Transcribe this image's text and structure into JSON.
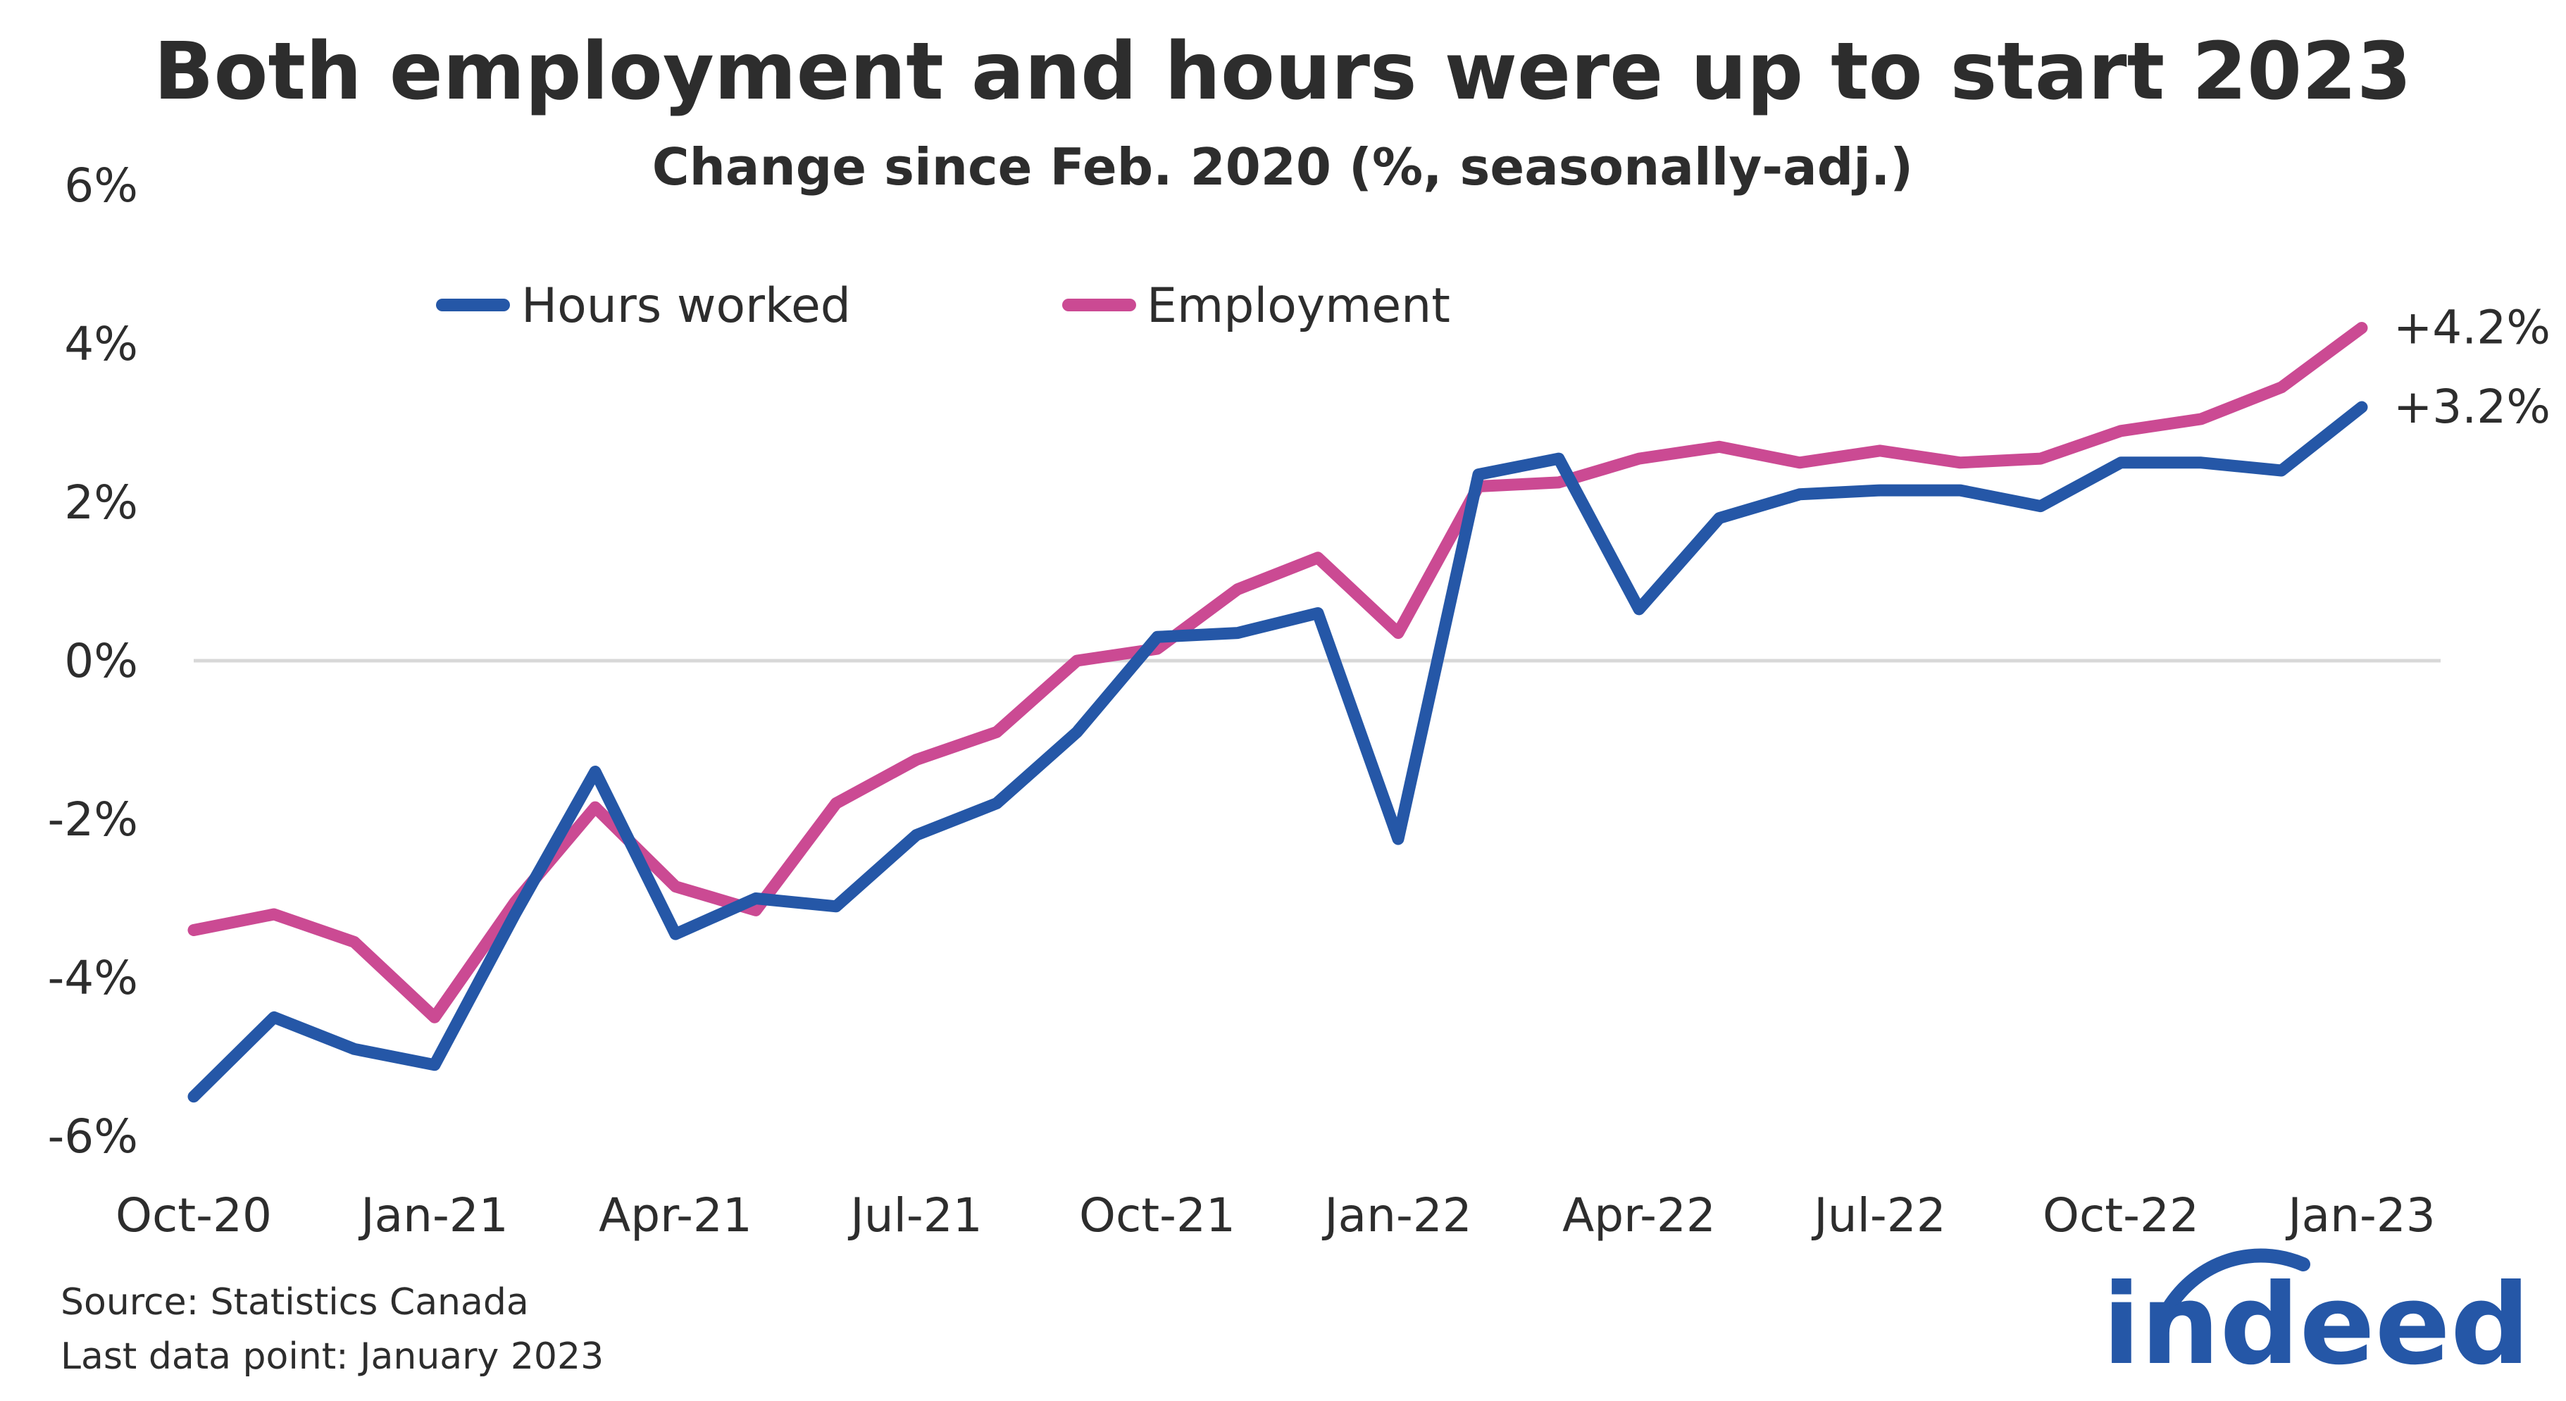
{
  "chart_data": {
    "type": "line",
    "title": "Both employment and hours were up to start 2023",
    "subtitle": "Change since Feb. 2020 (%, seasonally-adj.)",
    "xlabel": "",
    "ylabel": "",
    "ylim": [
      -6,
      6
    ],
    "y_ticks": [
      -6,
      -4,
      -2,
      0,
      2,
      4,
      6
    ],
    "y_tick_labels": [
      "-6%",
      "-4%",
      "-2%",
      "0%",
      "2%",
      "4%",
      "6%"
    ],
    "categories": [
      "Oct-20",
      "Nov-20",
      "Dec-20",
      "Jan-21",
      "Feb-21",
      "Mar-21",
      "Apr-21",
      "May-21",
      "Jun-21",
      "Jul-21",
      "Aug-21",
      "Sep-21",
      "Oct-21",
      "Nov-21",
      "Dec-21",
      "Jan-22",
      "Feb-22",
      "Mar-22",
      "Apr-22",
      "May-22",
      "Jun-22",
      "Jul-22",
      "Aug-22",
      "Sep-22",
      "Oct-22",
      "Nov-22",
      "Dec-22",
      "Jan-23"
    ],
    "x_ticks": [
      {
        "index": 0,
        "label": "Oct-20"
      },
      {
        "index": 3,
        "label": "Jan-21"
      },
      {
        "index": 6,
        "label": "Apr-21"
      },
      {
        "index": 9,
        "label": "Jul-21"
      },
      {
        "index": 12,
        "label": "Oct-21"
      },
      {
        "index": 15,
        "label": "Jan-22"
      },
      {
        "index": 18,
        "label": "Apr-22"
      },
      {
        "index": 21,
        "label": "Jul-22"
      },
      {
        "index": 24,
        "label": "Oct-22"
      },
      {
        "index": 27,
        "label": "Jan-23"
      }
    ],
    "series": [
      {
        "name": "Hours worked",
        "color": "#2557a7",
        "values": [
          -5.5,
          -4.5,
          -4.9,
          -5.1,
          -3.2,
          -1.4,
          -3.45,
          -3.0,
          -3.1,
          -2.2,
          -1.8,
          -0.9,
          0.3,
          0.35,
          0.6,
          -2.25,
          2.35,
          2.55,
          0.65,
          1.8,
          2.1,
          2.15,
          2.15,
          1.95,
          2.5,
          2.5,
          2.4,
          3.2
        ],
        "end_label": "+3.2%"
      },
      {
        "name": "Employment",
        "color": "#cb4a93",
        "values": [
          -3.4,
          -3.2,
          -3.55,
          -4.5,
          -3.05,
          -1.85,
          -2.85,
          -3.15,
          -1.8,
          -1.25,
          -0.9,
          0.0,
          0.15,
          0.9,
          1.3,
          0.35,
          2.2,
          2.25,
          2.55,
          2.7,
          2.5,
          2.65,
          2.5,
          2.55,
          2.9,
          3.05,
          3.45,
          4.2
        ],
        "end_label": "+4.2%"
      }
    ],
    "legend_position": "top-left",
    "zero_line": true
  },
  "footer": {
    "source": "Source: Statistics Canada",
    "last_data_point": "Last data point: January 2023"
  },
  "logo": {
    "text": "indeed",
    "color": "#2557a7"
  }
}
